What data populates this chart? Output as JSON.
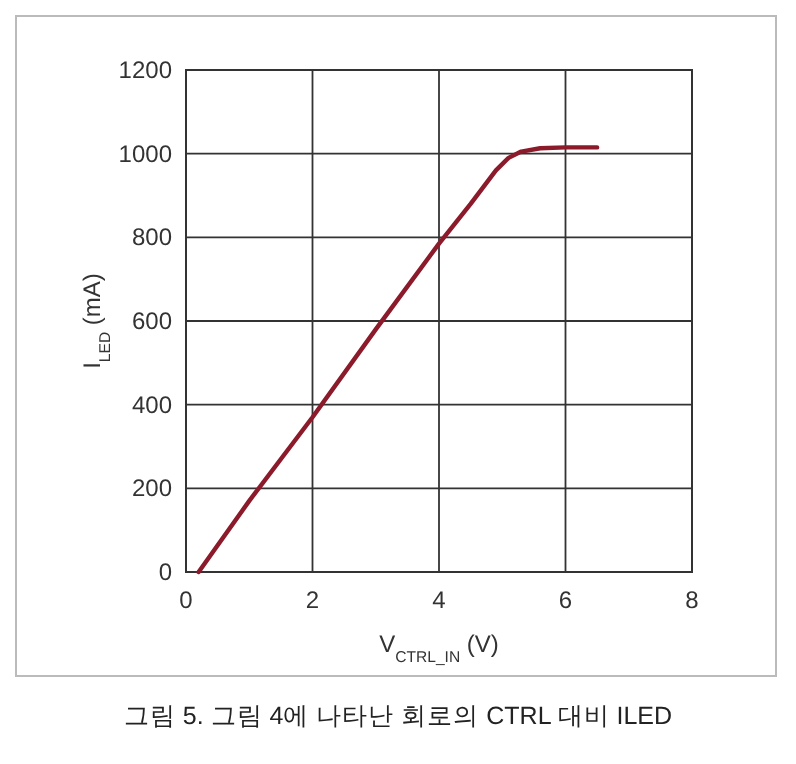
{
  "chart_data": {
    "type": "line",
    "xlabel": "V$_{CTRL_IN}$ (V)",
    "ylabel": "I$_{LED}$ (mA)",
    "annotations": [
      "그림 5. 그림 4에 나타난 회로의 CTRL 대비 ILED"
    ],
    "xlim": [
      0,
      8
    ],
    "xticks": [
      0,
      2,
      4,
      6,
      8
    ],
    "ylim": [
      0,
      1200
    ],
    "yticks": [
      0,
      200,
      400,
      600,
      800,
      1000,
      1200
    ],
    "grid": true,
    "marker": "none",
    "line_style": "solid",
    "series": [
      {
        "color": "#8b1a2b",
        "x": [
          0.2,
          1,
          2,
          3,
          4,
          4.5,
          4.9,
          5.1,
          5.3,
          5.6,
          6,
          6.5
        ],
        "values": [
          0,
          170,
          370,
          580,
          785,
          880,
          960,
          990,
          1005,
          1013,
          1015,
          1015
        ]
      }
    ]
  }
}
